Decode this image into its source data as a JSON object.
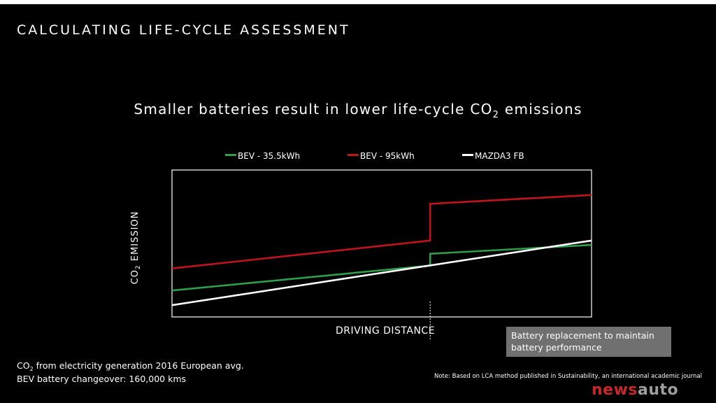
{
  "header": {
    "title": "CALCULATING LIFE-CYCLE ASSESSMENT"
  },
  "chart_data": {
    "type": "line",
    "title_parts": {
      "pre": "Smaller batteries result in lower life-cycle CO",
      "sub": "2",
      "post": " emissions"
    },
    "xlabel": "DRIVING DISTANCE",
    "ylabel_parts": {
      "pre": "CO",
      "sub": "2",
      "post": " EMISSION"
    },
    "axis_ticks": false,
    "legend_position": "top",
    "xlim": [
      0,
      260000
    ],
    "ylim": [
      0,
      100
    ],
    "battery_changeover_x": 160000,
    "series": [
      {
        "name": "BEV - 35.5kWh",
        "color": "#2e9e4a",
        "points": [
          [
            0,
            18
          ],
          [
            160000,
            35
          ],
          [
            160000,
            43
          ],
          [
            260000,
            49
          ]
        ]
      },
      {
        "name": "BEV - 95kWh",
        "color": "#c0141c",
        "points": [
          [
            0,
            33
          ],
          [
            160000,
            52
          ],
          [
            160000,
            77
          ],
          [
            260000,
            83
          ]
        ]
      },
      {
        "name": "MAZDA3 FB",
        "color": "#ffffff",
        "points": [
          [
            0,
            8
          ],
          [
            260000,
            52
          ]
        ]
      }
    ],
    "annotation": {
      "lines": [
        "Battery replacement to maintain",
        "battery performance"
      ]
    }
  },
  "footnote": {
    "line1_parts": {
      "pre": "CO",
      "sub": "2",
      "post": " from electricity generation 2016 European avg."
    },
    "line2": "BEV battery changeover: 160,000 kms"
  },
  "note": "Note: Based on LCA method published in Sustainability, an international academic journal",
  "watermark": {
    "part1": "news",
    "part2": "auto"
  },
  "colors": {
    "background": "#000000",
    "annotation_box": "#707070",
    "plot_frame": "#ffffff"
  }
}
